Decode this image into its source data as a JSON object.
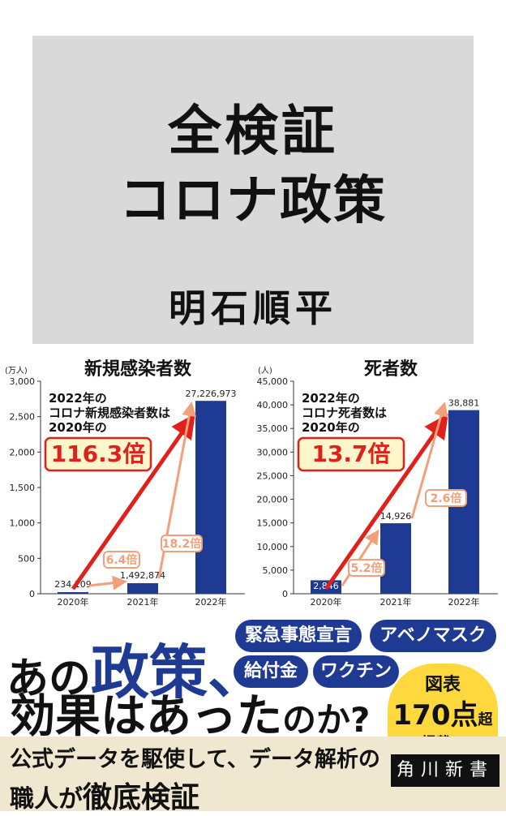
{
  "book": {
    "title_line1": "全検証",
    "title_line2": "コロナ政策",
    "author": "明石順平"
  },
  "chart_data": [
    {
      "type": "bar",
      "title": "新規感染者数",
      "unit": "(万人)",
      "categories": [
        "2020年",
        "2021年",
        "2022年"
      ],
      "values": [
        234109,
        1492874,
        27226973
      ],
      "value_labels": [
        "234,109",
        "1,492,874",
        "27,226,973"
      ],
      "ylim": [
        0,
        3000
      ],
      "yticks": [
        "0",
        "500",
        "1,000",
        "1,500",
        "2,000",
        "2,500",
        "3,000"
      ],
      "annotation_lines": [
        "2022年の",
        "コロナ新規感染者数は",
        "2020年の"
      ],
      "ratio_main": "116.3倍",
      "ratio_step1": "6.4倍",
      "ratio_step2": "18.2倍",
      "bar_color": "#1f3a93"
    },
    {
      "type": "bar",
      "title": "死者数",
      "unit": "(人)",
      "categories": [
        "2020年",
        "2021年",
        "2022年"
      ],
      "values": [
        2846,
        14926,
        38881
      ],
      "value_labels": [
        "2,846",
        "14,926",
        "38,881"
      ],
      "ylim": [
        0,
        45000
      ],
      "yticks": [
        "0",
        "5,000",
        "10,000",
        "15,000",
        "20,000",
        "25,000",
        "30,000",
        "35,000",
        "40,000",
        "45,000"
      ],
      "annotation_lines": [
        "2022年の",
        "コロナ死者数は",
        "2020年の"
      ],
      "ratio_main": "13.7倍",
      "ratio_step1": "5.2倍",
      "ratio_step2": "2.6倍",
      "bar_color": "#1f3a93"
    }
  ],
  "catch": {
    "line1_a": "あの",
    "line1_b": "政策、",
    "line2_a": "効果はあった",
    "line2_b": "のか?"
  },
  "tags": [
    "緊急事態宣言",
    "アベノマスク",
    "給付金",
    "ワクチン"
  ],
  "badge": {
    "line1": "図表",
    "line2": "170点",
    "line2_suffix": "超",
    "line3": "掲載!!"
  },
  "subtitle": {
    "line1": "公式データを駆使して、データ解析の",
    "line2_a": "職人が",
    "line2_b": "徹底検証"
  },
  "publisher": "角川新書",
  "colors": {
    "accent_blue": "#1f3a93",
    "arrow_red": "#e0201b",
    "arrow_orange": "#f2a07a",
    "badge_yellow": "#ffd83d"
  }
}
